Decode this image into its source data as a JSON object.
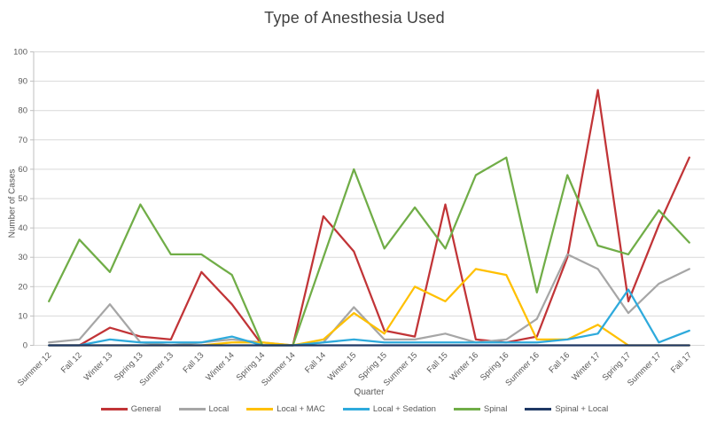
{
  "chart_data": {
    "type": "line",
    "title": "Type of Anesthesia Used",
    "xlabel": "Quarter",
    "ylabel": "Number of Cases",
    "ylim": [
      0,
      100
    ],
    "ytick_step": 10,
    "grid": true,
    "legend_position": "bottom",
    "categories": [
      "Summer 12",
      "Fall 12",
      "Winter 13",
      "Spring 13",
      "Summer 13",
      "Fall 13",
      "Winter 14",
      "Spring 14",
      "Summer 14",
      "Fall 14",
      "Winter 15",
      "Spring 15",
      "Summer 15",
      "Fall 15",
      "Winter 16",
      "Spring 16",
      "Summer 16",
      "Fall 16",
      "Winter 17",
      "Spring 17",
      "Summer 17",
      "Fall 17"
    ],
    "series": [
      {
        "name": "General",
        "color": "#C13437",
        "values": [
          0,
          0,
          6,
          3,
          2,
          25,
          14,
          0,
          0,
          44,
          32,
          5,
          3,
          48,
          2,
          1,
          3,
          30,
          87,
          15,
          41,
          64
        ]
      },
      {
        "name": "Local",
        "color": "#A6A6A6",
        "values": [
          1,
          2,
          14,
          1,
          0,
          1,
          2,
          1,
          0,
          1,
          13,
          2,
          2,
          4,
          1,
          2,
          9,
          31,
          26,
          11,
          21,
          26
        ]
      },
      {
        "name": "Local + MAC",
        "color": "#FFC000",
        "values": [
          0,
          0,
          0,
          0,
          0,
          0,
          1,
          1,
          0,
          2,
          11,
          4,
          20,
          15,
          26,
          24,
          2,
          2,
          7,
          0,
          0,
          0
        ]
      },
      {
        "name": "Local + Sedation",
        "color": "#2EAADC",
        "values": [
          0,
          0,
          2,
          1,
          1,
          1,
          3,
          0,
          0,
          1,
          2,
          1,
          1,
          1,
          1,
          1,
          1,
          2,
          4,
          19,
          1,
          5
        ]
      },
      {
        "name": "Spinal",
        "color": "#70AD47",
        "values": [
          15,
          36,
          25,
          48,
          31,
          31,
          24,
          0,
          0,
          30,
          60,
          33,
          47,
          33,
          58,
          64,
          18,
          58,
          34,
          31,
          46,
          35
        ]
      },
      {
        "name": "Spinal + Local",
        "color": "#1F3864",
        "values": [
          0,
          0,
          0,
          0,
          0,
          0,
          0,
          0,
          0,
          0,
          0,
          0,
          0,
          0,
          0,
          0,
          0,
          0,
          0,
          0,
          0,
          0
        ]
      }
    ],
    "colors": {
      "gridline": "#D9D9D9",
      "axis": "#BFBFBF",
      "tick_text": "#595959",
      "title_text": "#404040",
      "background": "#FFFFFF"
    }
  }
}
